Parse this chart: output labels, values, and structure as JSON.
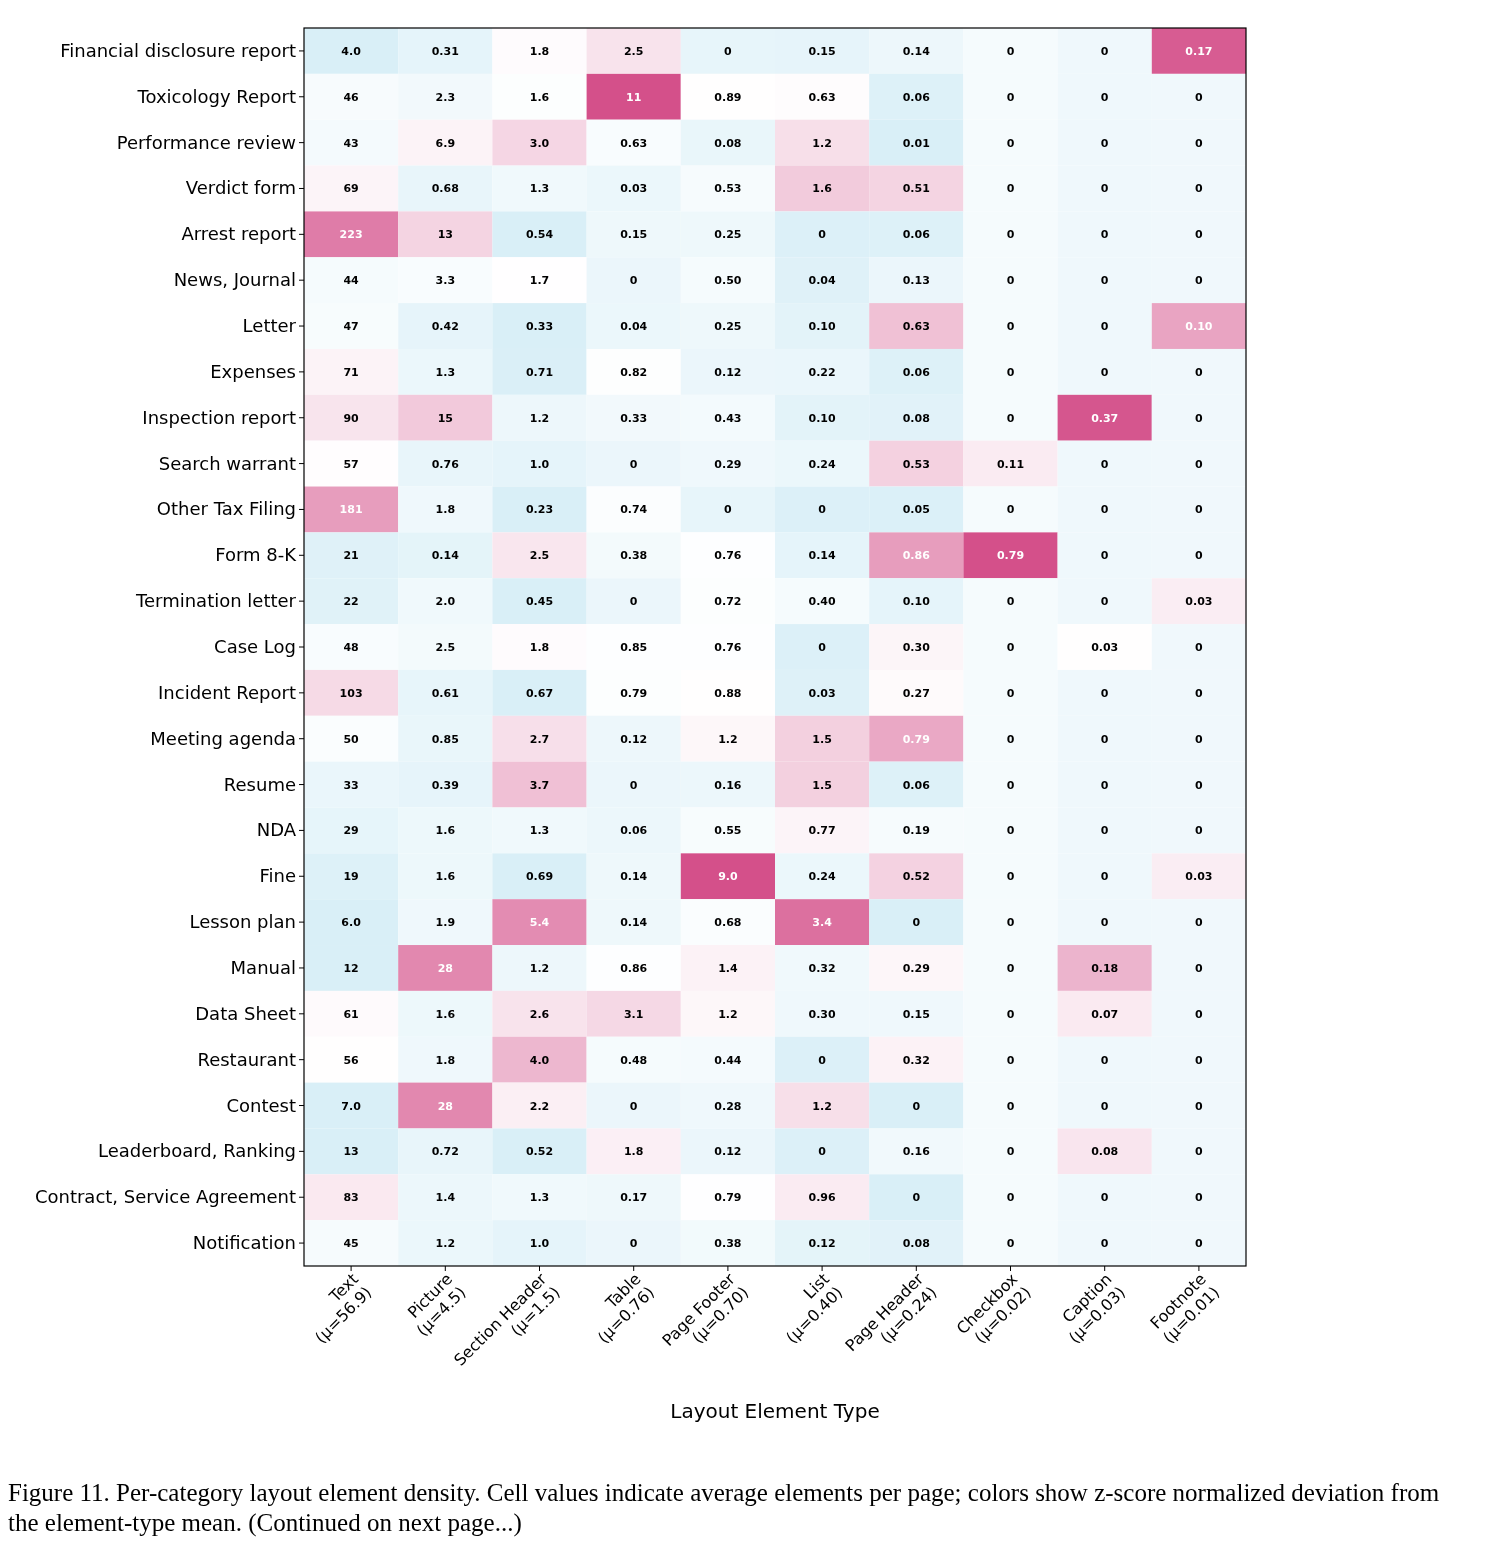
{
  "chart_data": {
    "type": "heatmap",
    "xlabel": "Layout Element Type",
    "categories": [
      "Text\n(μ=56.9)",
      "Picture\n(μ=4.5)",
      "Section Header\n(μ=1.5)",
      "Table\n(μ=0.76)",
      "Page Footer\n(μ=0.70)",
      "List\n(μ=0.40)",
      "Page Header\n(μ=0.24)",
      "Checkbox\n(μ=0.02)",
      "Caption\n(μ=0.03)",
      "Footnote\n(μ=0.01)"
    ],
    "y_categories": [
      "Financial disclosure report",
      "Toxicology Report",
      "Performance review",
      "Verdict form",
      "Arrest report",
      "News, Journal",
      "Letter",
      "Expenses",
      "Inspection report",
      "Search warrant",
      "Other Tax Filing",
      "Form 8-K",
      "Termination letter",
      "Case Log",
      "Incident Report",
      "Meeting agenda",
      "Resume",
      "NDA",
      "Fine",
      "Lesson plan",
      "Manual",
      "Data Sheet",
      "Restaurant",
      "Contest",
      "Leaderboard, Ranking",
      "Contract, Service Agreement",
      "Notification"
    ],
    "cells": [
      [
        4.0,
        0.31,
        1.8,
        2.5,
        0,
        0.15,
        0.14,
        0,
        0,
        0.17
      ],
      [
        46,
        2.3,
        1.6,
        11,
        0.89,
        0.63,
        0.06,
        0,
        0,
        0
      ],
      [
        43,
        6.9,
        3.0,
        0.63,
        0.08,
        1.2,
        0.01,
        0,
        0,
        0
      ],
      [
        69,
        0.68,
        1.3,
        0.03,
        0.53,
        1.6,
        0.51,
        0,
        0,
        0
      ],
      [
        223,
        13,
        0.54,
        0.15,
        0.25,
        0,
        0.06,
        0,
        0,
        0
      ],
      [
        44,
        3.3,
        1.7,
        0,
        0.5,
        0.04,
        0.13,
        0,
        0,
        0
      ],
      [
        47,
        0.42,
        0.33,
        0.04,
        0.25,
        0.1,
        0.63,
        0,
        0,
        0.1
      ],
      [
        71,
        1.3,
        0.71,
        0.82,
        0.12,
        0.22,
        0.06,
        0,
        0,
        0
      ],
      [
        90,
        15,
        1.2,
        0.33,
        0.43,
        0.1,
        0.08,
        0,
        0.37,
        0
      ],
      [
        57,
        0.76,
        1.0,
        0,
        0.29,
        0.24,
        0.53,
        0.11,
        0,
        0
      ],
      [
        181,
        1.8,
        0.23,
        0.74,
        0,
        0,
        0.05,
        0,
        0,
        0
      ],
      [
        21,
        0.14,
        2.5,
        0.38,
        0.76,
        0.14,
        0.86,
        0.79,
        0,
        0
      ],
      [
        22,
        2.0,
        0.45,
        0,
        0.72,
        0.4,
        0.1,
        0,
        0,
        0.03
      ],
      [
        48,
        2.5,
        1.8,
        0.85,
        0.76,
        0,
        0.3,
        0,
        0.03,
        0
      ],
      [
        103,
        0.61,
        0.67,
        0.79,
        0.88,
        0.03,
        0.27,
        0,
        0,
        0
      ],
      [
        50,
        0.85,
        2.7,
        0.12,
        1.2,
        1.5,
        0.79,
        0,
        0,
        0
      ],
      [
        33,
        0.39,
        3.7,
        0,
        0.16,
        1.5,
        0.06,
        0,
        0,
        0
      ],
      [
        29,
        1.6,
        1.3,
        0.06,
        0.55,
        0.77,
        0.19,
        0,
        0,
        0
      ],
      [
        19,
        1.6,
        0.69,
        0.14,
        9.0,
        0.24,
        0.52,
        0,
        0,
        0.03
      ],
      [
        6.0,
        1.9,
        5.4,
        0.14,
        0.68,
        3.4,
        0,
        0,
        0,
        0
      ],
      [
        12,
        28,
        1.2,
        0.86,
        1.4,
        0.32,
        0.29,
        0,
        0.18,
        0
      ],
      [
        61,
        1.6,
        2.6,
        3.1,
        1.2,
        0.3,
        0.15,
        0,
        0.07,
        0
      ],
      [
        56,
        1.8,
        4.0,
        0.48,
        0.44,
        0,
        0.32,
        0,
        0,
        0
      ],
      [
        7.0,
        28,
        2.2,
        0,
        0.28,
        1.2,
        0,
        0,
        0,
        0
      ],
      [
        13,
        0.72,
        0.52,
        1.8,
        0.12,
        0,
        0.16,
        0,
        0.08,
        0
      ],
      [
        83,
        1.4,
        1.3,
        0.17,
        0.79,
        0.96,
        0,
        0,
        0,
        0
      ],
      [
        45,
        1.2,
        1.0,
        0,
        0.38,
        0.12,
        0.08,
        0,
        0,
        0
      ]
    ],
    "cell_labels": [
      [
        "4.0",
        "0.31",
        "1.8",
        "2.5",
        "0",
        "0.15",
        "0.14",
        "0",
        "0",
        "0.17"
      ],
      [
        "46",
        "2.3",
        "1.6",
        "11",
        "0.89",
        "0.63",
        "0.06",
        "0",
        "0",
        "0"
      ],
      [
        "43",
        "6.9",
        "3.0",
        "0.63",
        "0.08",
        "1.2",
        "0.01",
        "0",
        "0",
        "0"
      ],
      [
        "69",
        "0.68",
        "1.3",
        "0.03",
        "0.53",
        "1.6",
        "0.51",
        "0",
        "0",
        "0"
      ],
      [
        "223",
        "13",
        "0.54",
        "0.15",
        "0.25",
        "0",
        "0.06",
        "0",
        "0",
        "0"
      ],
      [
        "44",
        "3.3",
        "1.7",
        "0",
        "0.50",
        "0.04",
        "0.13",
        "0",
        "0",
        "0"
      ],
      [
        "47",
        "0.42",
        "0.33",
        "0.04",
        "0.25",
        "0.10",
        "0.63",
        "0",
        "0",
        "0.10"
      ],
      [
        "71",
        "1.3",
        "0.71",
        "0.82",
        "0.12",
        "0.22",
        "0.06",
        "0",
        "0",
        "0"
      ],
      [
        "90",
        "15",
        "1.2",
        "0.33",
        "0.43",
        "0.10",
        "0.08",
        "0",
        "0.37",
        "0"
      ],
      [
        "57",
        "0.76",
        "1.0",
        "0",
        "0.29",
        "0.24",
        "0.53",
        "0.11",
        "0",
        "0"
      ],
      [
        "181",
        "1.8",
        "0.23",
        "0.74",
        "0",
        "0",
        "0.05",
        "0",
        "0",
        "0"
      ],
      [
        "21",
        "0.14",
        "2.5",
        "0.38",
        "0.76",
        "0.14",
        "0.86",
        "0.79",
        "0",
        "0"
      ],
      [
        "22",
        "2.0",
        "0.45",
        "0",
        "0.72",
        "0.40",
        "0.10",
        "0",
        "0",
        "0.03"
      ],
      [
        "48",
        "2.5",
        "1.8",
        "0.85",
        "0.76",
        "0",
        "0.30",
        "0",
        "0.03",
        "0"
      ],
      [
        "103",
        "0.61",
        "0.67",
        "0.79",
        "0.88",
        "0.03",
        "0.27",
        "0",
        "0",
        "0"
      ],
      [
        "50",
        "0.85",
        "2.7",
        "0.12",
        "1.2",
        "1.5",
        "0.79",
        "0",
        "0",
        "0"
      ],
      [
        "33",
        "0.39",
        "3.7",
        "0",
        "0.16",
        "1.5",
        "0.06",
        "0",
        "0",
        "0"
      ],
      [
        "29",
        "1.6",
        "1.3",
        "0.06",
        "0.55",
        "0.77",
        "0.19",
        "0",
        "0",
        "0"
      ],
      [
        "19",
        "1.6",
        "0.69",
        "0.14",
        "9.0",
        "0.24",
        "0.52",
        "0",
        "0",
        "0.03"
      ],
      [
        "6.0",
        "1.9",
        "5.4",
        "0.14",
        "0.68",
        "3.4",
        "0",
        "0",
        "0",
        "0"
      ],
      [
        "12",
        "28",
        "1.2",
        "0.86",
        "1.4",
        "0.32",
        "0.29",
        "0",
        "0.18",
        "0"
      ],
      [
        "61",
        "1.6",
        "2.6",
        "3.1",
        "1.2",
        "0.30",
        "0.15",
        "0",
        "0.07",
        "0"
      ],
      [
        "56",
        "1.8",
        "4.0",
        "0.48",
        "0.44",
        "0",
        "0.32",
        "0",
        "0",
        "0"
      ],
      [
        "7.0",
        "28",
        "2.2",
        "0",
        "0.28",
        "1.2",
        "0",
        "0",
        "0",
        "0"
      ],
      [
        "13",
        "0.72",
        "0.52",
        "1.8",
        "0.12",
        "0",
        "0.16",
        "0",
        "0.08",
        "0"
      ],
      [
        "83",
        "1.4",
        "1.3",
        "0.17",
        "0.79",
        "0.96",
        "0",
        "0",
        "0",
        "0"
      ],
      [
        "45",
        "1.2",
        "1.0",
        "0",
        "0.38",
        "0.12",
        "0.08",
        "0",
        "0",
        "0"
      ]
    ],
    "annotations": [
      "Figure 11. Per-category layout element density. Cell values indicate average elements per page; colors show z-score normalized deviation from the element-type mean. (Continued on next page...)"
    ]
  }
}
